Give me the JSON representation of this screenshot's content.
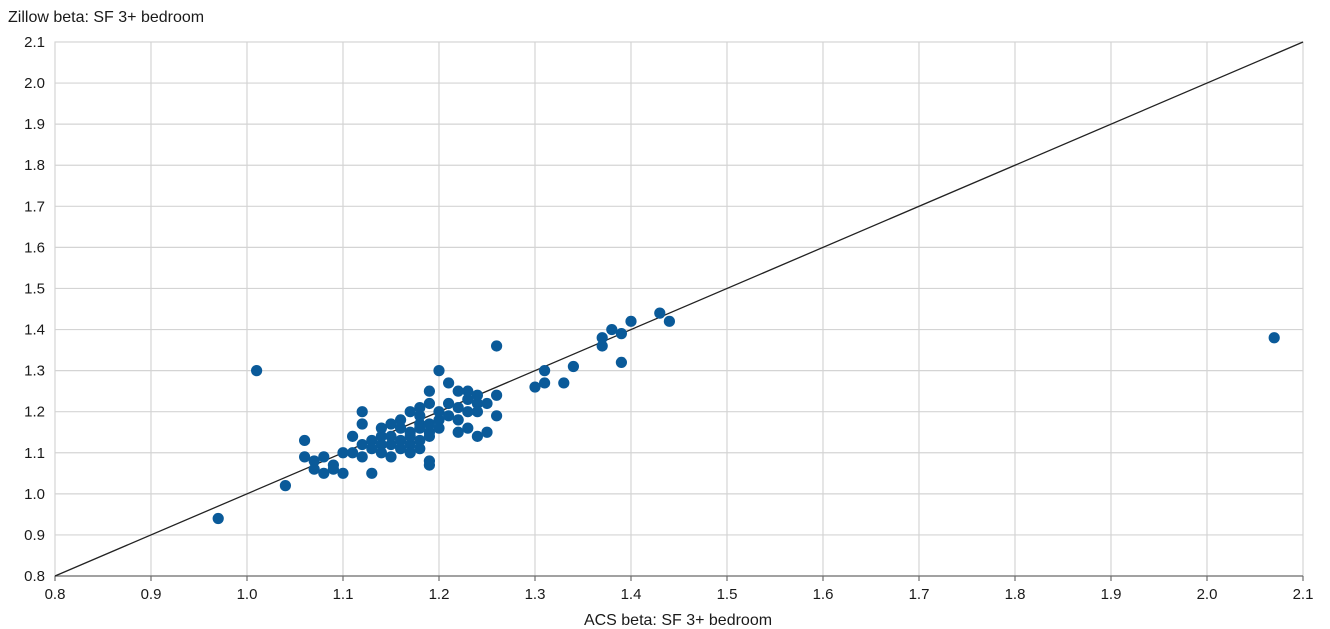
{
  "chart_data": {
    "type": "scatter",
    "xlabel": "ACS beta: SF 3+ bedroom",
    "ylabel": "Zillow beta: SF 3+ bedroom",
    "xlim": [
      0.8,
      2.1
    ],
    "ylim": [
      0.8,
      2.1
    ],
    "x_ticks": [
      "0.8",
      "0.9",
      "1.0",
      "1.1",
      "1.2",
      "1.3",
      "1.4",
      "1.5",
      "1.6",
      "1.7",
      "1.8",
      "1.9",
      "2.0",
      "2.1"
    ],
    "y_ticks": [
      "0.8",
      "0.9",
      "1.0",
      "1.1",
      "1.2",
      "1.3",
      "1.4",
      "1.5",
      "1.6",
      "1.7",
      "1.8",
      "1.9",
      "2.0",
      "2.1"
    ],
    "grid": true,
    "reference_line": {
      "from": [
        0.8,
        0.8
      ],
      "to": [
        2.1,
        2.1
      ],
      "color": "#222222"
    },
    "marker_color": "#0a5a99",
    "points": [
      [
        0.97,
        0.94
      ],
      [
        1.01,
        1.3
      ],
      [
        1.04,
        1.02
      ],
      [
        1.06,
        1.13
      ],
      [
        1.06,
        1.09
      ],
      [
        1.07,
        1.08
      ],
      [
        1.07,
        1.06
      ],
      [
        1.08,
        1.05
      ],
      [
        1.08,
        1.09
      ],
      [
        1.09,
        1.07
      ],
      [
        1.09,
        1.06
      ],
      [
        1.1,
        1.1
      ],
      [
        1.1,
        1.05
      ],
      [
        1.11,
        1.1
      ],
      [
        1.11,
        1.14
      ],
      [
        1.12,
        1.12
      ],
      [
        1.12,
        1.09
      ],
      [
        1.12,
        1.2
      ],
      [
        1.12,
        1.17
      ],
      [
        1.13,
        1.13
      ],
      [
        1.13,
        1.11
      ],
      [
        1.13,
        1.05
      ],
      [
        1.14,
        1.16
      ],
      [
        1.14,
        1.12
      ],
      [
        1.14,
        1.1
      ],
      [
        1.14,
        1.14
      ],
      [
        1.15,
        1.17
      ],
      [
        1.15,
        1.12
      ],
      [
        1.15,
        1.09
      ],
      [
        1.15,
        1.14
      ],
      [
        1.16,
        1.16
      ],
      [
        1.16,
        1.13
      ],
      [
        1.16,
        1.11
      ],
      [
        1.16,
        1.18
      ],
      [
        1.17,
        1.2
      ],
      [
        1.17,
        1.15
      ],
      [
        1.17,
        1.12
      ],
      [
        1.17,
        1.1
      ],
      [
        1.17,
        1.14
      ],
      [
        1.18,
        1.17
      ],
      [
        1.18,
        1.13
      ],
      [
        1.18,
        1.16
      ],
      [
        1.18,
        1.19
      ],
      [
        1.18,
        1.11
      ],
      [
        1.18,
        1.21
      ],
      [
        1.19,
        1.15
      ],
      [
        1.19,
        1.17
      ],
      [
        1.19,
        1.14
      ],
      [
        1.19,
        1.22
      ],
      [
        1.19,
        1.25
      ],
      [
        1.19,
        1.08
      ],
      [
        1.19,
        1.07
      ],
      [
        1.2,
        1.3
      ],
      [
        1.2,
        1.18
      ],
      [
        1.2,
        1.2
      ],
      [
        1.2,
        1.16
      ],
      [
        1.21,
        1.27
      ],
      [
        1.21,
        1.19
      ],
      [
        1.21,
        1.22
      ],
      [
        1.22,
        1.21
      ],
      [
        1.22,
        1.25
      ],
      [
        1.22,
        1.15
      ],
      [
        1.22,
        1.18
      ],
      [
        1.23,
        1.2
      ],
      [
        1.23,
        1.23
      ],
      [
        1.23,
        1.16
      ],
      [
        1.23,
        1.25
      ],
      [
        1.24,
        1.22
      ],
      [
        1.24,
        1.14
      ],
      [
        1.24,
        1.2
      ],
      [
        1.24,
        1.24
      ],
      [
        1.25,
        1.15
      ],
      [
        1.25,
        1.22
      ],
      [
        1.26,
        1.19
      ],
      [
        1.26,
        1.24
      ],
      [
        1.26,
        1.36
      ],
      [
        1.3,
        1.26
      ],
      [
        1.31,
        1.3
      ],
      [
        1.31,
        1.27
      ],
      [
        1.33,
        1.27
      ],
      [
        1.34,
        1.31
      ],
      [
        1.37,
        1.36
      ],
      [
        1.37,
        1.38
      ],
      [
        1.38,
        1.4
      ],
      [
        1.39,
        1.39
      ],
      [
        1.39,
        1.32
      ],
      [
        1.4,
        1.42
      ],
      [
        1.43,
        1.44
      ],
      [
        1.44,
        1.42
      ],
      [
        2.07,
        1.38
      ]
    ]
  }
}
